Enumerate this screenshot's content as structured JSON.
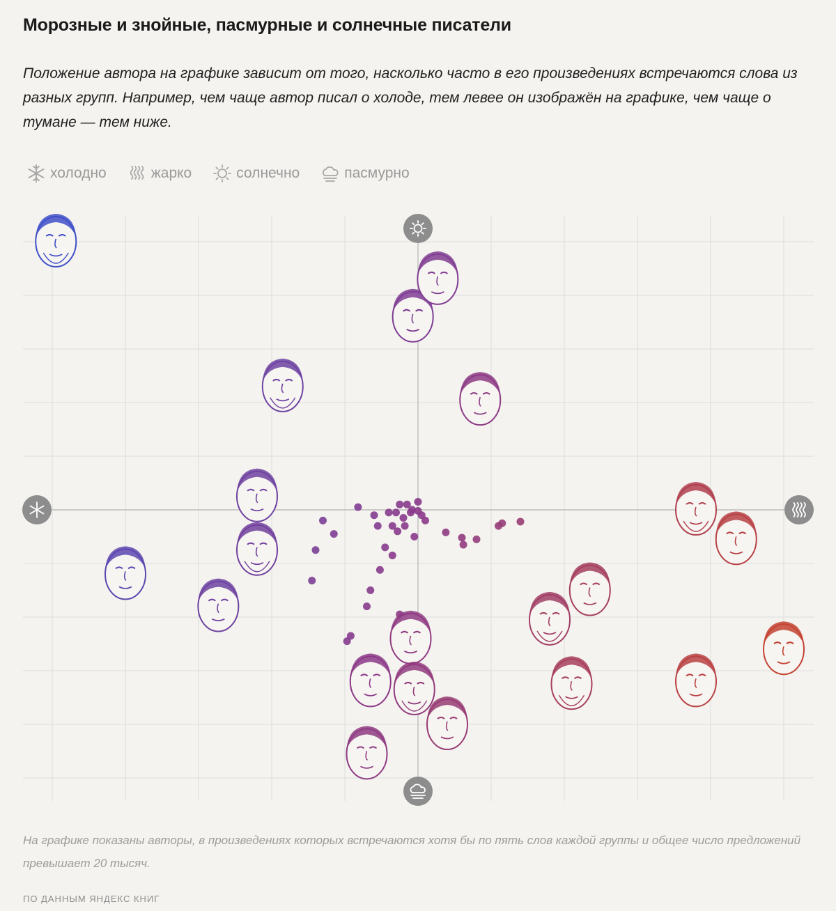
{
  "title": "Морозные и знойные, пасмурные и солнечные писатели",
  "subtitle": "Положение автора на графике зависит от того, насколько часто в его произведениях встречаются слова из разных групп. Например, чем чаще автор писал о холоде, тем левее он изображён на графике, чем чаще о тумане — тем ниже.",
  "legend": [
    {
      "icon": "snowflake-icon",
      "label": "холодно"
    },
    {
      "icon": "heat-waves-icon",
      "label": "жарко"
    },
    {
      "icon": "sun-icon",
      "label": "солнечно"
    },
    {
      "icon": "cloud-fog-icon",
      "label": "пасмурно"
    }
  ],
  "footnote": "На графике показаны авторы, в произведениях которых встречаются хотя бы по пять слов каждой группы и общее число предложений превышает 20 тысяч.",
  "source": "ПО ДАННЫМ ЯНДЕКС КНИГ",
  "chart_data": {
    "type": "scatter",
    "title": "Морозные и знойные, пасмурные и солнечные писатели",
    "xlabel": "",
    "ylabel": "",
    "xlim": [
      -5,
      5
    ],
    "ylim": [
      -5.3,
      5.3
    ],
    "grid": true,
    "axis_icons": {
      "left": "snowflake-icon",
      "right": "heat-waves-icon",
      "top": "sun-icon",
      "bottom": "cloud-fog-icon"
    },
    "colors": {
      "cold": "#3e4fc8",
      "mid": "#8a3a8a",
      "warm": "#c9442a",
      "grid": "#dcdcdc",
      "axis": "#bdbdbd",
      "icon_bg": "#8d8d8d"
    },
    "points": [
      {
        "x": -0.05,
        "y": -0.5
      },
      {
        "x": -0.2,
        "y": -0.15
      },
      {
        "x": -0.1,
        "y": -0.05
      },
      {
        "x": -0.3,
        "y": -0.05
      },
      {
        "x": -0.25,
        "y": 0.1
      },
      {
        "x": -0.15,
        "y": 0.1
      },
      {
        "x": 0.0,
        "y": 0.15
      },
      {
        "x": 0.05,
        "y": -0.1
      },
      {
        "x": -0.35,
        "y": -0.3
      },
      {
        "x": -0.28,
        "y": -0.4
      },
      {
        "x": -0.55,
        "y": -0.3
      },
      {
        "x": -0.6,
        "y": -0.1
      },
      {
        "x": -0.82,
        "y": 0.05
      },
      {
        "x": -1.3,
        "y": -0.2
      },
      {
        "x": -1.4,
        "y": -0.75
      },
      {
        "x": -1.15,
        "y": -0.45
      },
      {
        "x": -0.45,
        "y": -0.7
      },
      {
        "x": -0.35,
        "y": -0.85
      },
      {
        "x": -0.52,
        "y": -1.12
      },
      {
        "x": -1.45,
        "y": -1.32
      },
      {
        "x": -0.65,
        "y": -1.5
      },
      {
        "x": -0.7,
        "y": -1.8
      },
      {
        "x": -0.25,
        "y": -1.95
      },
      {
        "x": -0.92,
        "y": -2.35
      },
      {
        "x": -0.97,
        "y": -2.45
      },
      {
        "x": 0.1,
        "y": -0.2
      },
      {
        "x": 0.38,
        "y": -0.42
      },
      {
        "x": 0.6,
        "y": -0.52
      },
      {
        "x": 0.62,
        "y": -0.65
      },
      {
        "x": 0.8,
        "y": -0.55
      },
      {
        "x": 1.1,
        "y": -0.3
      },
      {
        "x": 1.15,
        "y": -0.25
      },
      {
        "x": 1.4,
        "y": -0.22
      },
      {
        "x": -0.4,
        "y": -0.05
      },
      {
        "x": -0.08,
        "y": 0.0
      },
      {
        "x": 0.0,
        "y": -0.02
      },
      {
        "x": -0.18,
        "y": -0.3
      }
    ],
    "portraits": [
      {
        "x": -4.95,
        "y": 5.0
      },
      {
        "x": -0.07,
        "y": 3.6
      },
      {
        "x": 0.27,
        "y": 4.3
      },
      {
        "x": -1.85,
        "y": 2.3
      },
      {
        "x": 0.85,
        "y": 2.05
      },
      {
        "x": -2.2,
        "y": 0.25
      },
      {
        "x": -2.2,
        "y": -0.75
      },
      {
        "x": -4.0,
        "y": -1.2
      },
      {
        "x": -2.73,
        "y": -1.8
      },
      {
        "x": 3.8,
        "y": 0.0
      },
      {
        "x": 4.35,
        "y": -0.55
      },
      {
        "x": 2.35,
        "y": -1.5
      },
      {
        "x": 1.8,
        "y": -2.05
      },
      {
        "x": -0.1,
        "y": -2.4
      },
      {
        "x": -0.65,
        "y": -3.2
      },
      {
        "x": -0.05,
        "y": -3.35
      },
      {
        "x": 0.4,
        "y": -4.0
      },
      {
        "x": -0.7,
        "y": -4.55
      },
      {
        "x": 2.1,
        "y": -3.25
      },
      {
        "x": 3.8,
        "y": -3.2
      },
      {
        "x": 5.0,
        "y": -2.6
      }
    ]
  }
}
